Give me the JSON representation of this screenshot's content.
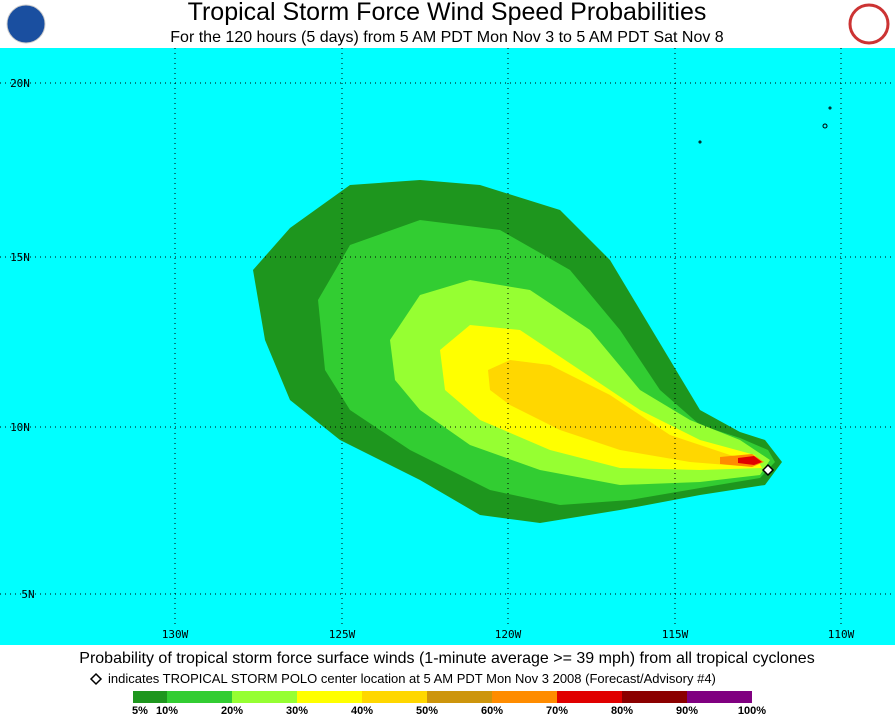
{
  "header": {
    "title": "Tropical Storm Force Wind Speed Probabilities",
    "subtitle": "For the 120 hours (5 days) from 5 AM PDT Mon Nov 3 to 5 AM PDT Sat Nov 8"
  },
  "map": {
    "lat_labels": [
      "20N",
      "15N",
      "10N",
      "5N"
    ],
    "lon_labels": [
      "130W",
      "125W",
      "120W",
      "115W",
      "110W"
    ]
  },
  "footer": {
    "caption": "Probability of tropical storm force surface winds (1-minute average >= 39 mph) from all tropical cyclones",
    "note": "indicates TROPICAL STORM POLO center location at 5 AM PDT Mon Nov 3 2008 (Forecast/Advisory #4)"
  },
  "legend": {
    "labels": [
      "5%",
      "10%",
      "20%",
      "30%",
      "40%",
      "50%",
      "60%",
      "70%",
      "80%",
      "90%",
      "100%"
    ],
    "colors": [
      "#1e961e",
      "#32cd32",
      "#96ff32",
      "#ffff00",
      "#ffd700",
      "#cd950c",
      "#ff8c00",
      "#e00000",
      "#8b0000",
      "#800080"
    ]
  }
}
